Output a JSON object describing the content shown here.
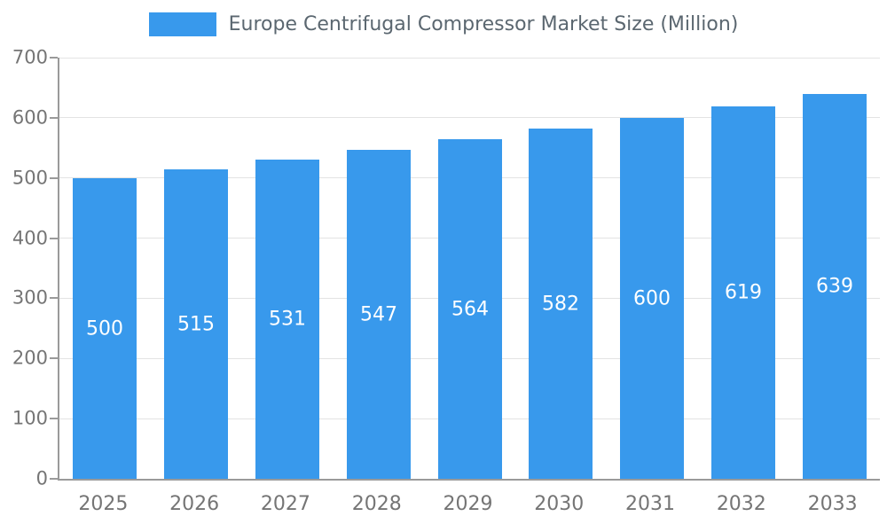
{
  "chart_data": {
    "type": "bar",
    "title": "Europe Centrifugal Compressor Market Size (Million)",
    "categories": [
      "2025",
      "2026",
      "2027",
      "2028",
      "2029",
      "2030",
      "2031",
      "2032",
      "2033"
    ],
    "values": [
      500,
      515,
      531,
      547,
      564,
      582,
      600,
      619,
      639
    ],
    "ylim": [
      0,
      700
    ],
    "ytick_step": 100,
    "grid": true,
    "legend_position": "top-center",
    "bar_color": "#3899EC",
    "bar_label_color": "#ffffff",
    "axis_text_color": "#757575",
    "legend_text_color": "#5b6770",
    "gridline_color": "#e3e3e3",
    "axis_line_color": "#9a9a9a"
  }
}
